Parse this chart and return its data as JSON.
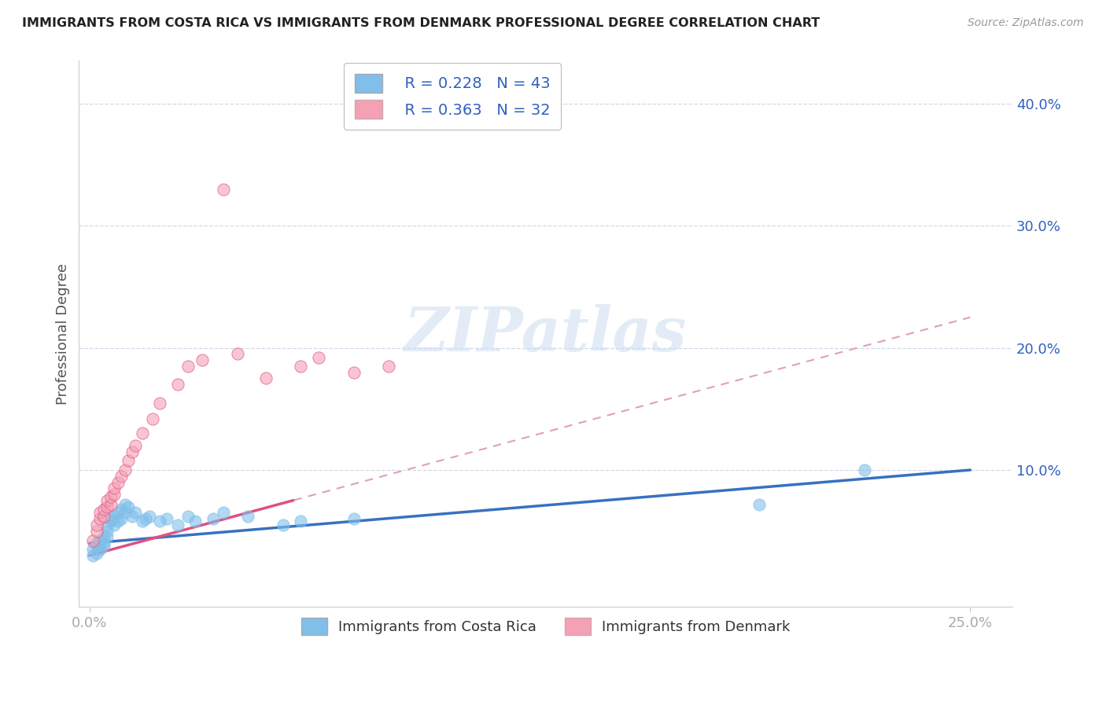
{
  "title": "IMMIGRANTS FROM COSTA RICA VS IMMIGRANTS FROM DENMARK PROFESSIONAL DEGREE CORRELATION CHART",
  "source": "Source: ZipAtlas.com",
  "ylabel": "Professional Degree",
  "xlim": [
    -0.003,
    0.262
  ],
  "ylim": [
    -0.012,
    0.435
  ],
  "legend_r1": "R = 0.228",
  "legend_n1": "N = 43",
  "legend_r2": "R = 0.363",
  "legend_n2": "N = 32",
  "legend_label1": "Immigrants from Costa Rica",
  "legend_label2": "Immigrants from Denmark",
  "color_blue": "#7fbfea",
  "color_pink": "#f4a0b5",
  "color_blue_line": "#3672c0",
  "color_pink_line": "#e05080",
  "color_pink_dash": "#e0a0b8",
  "color_text_blue": "#3060c0",
  "watermark_text": "ZIPatlas",
  "cr_intercept": 0.04,
  "cr_slope": 0.24,
  "dk_intercept": 0.03,
  "dk_slope": 0.78,
  "costa_rica_x": [
    0.001,
    0.001,
    0.002,
    0.002,
    0.002,
    0.003,
    0.003,
    0.003,
    0.004,
    0.004,
    0.004,
    0.005,
    0.005,
    0.005,
    0.006,
    0.006,
    0.007,
    0.007,
    0.008,
    0.008,
    0.009,
    0.009,
    0.01,
    0.01,
    0.011,
    0.012,
    0.013,
    0.015,
    0.016,
    0.017,
    0.02,
    0.022,
    0.025,
    0.028,
    0.03,
    0.035,
    0.038,
    0.045,
    0.055,
    0.06,
    0.075,
    0.19,
    0.22
  ],
  "costa_rica_y": [
    0.035,
    0.03,
    0.038,
    0.032,
    0.04,
    0.042,
    0.038,
    0.035,
    0.04,
    0.045,
    0.038,
    0.05,
    0.055,
    0.045,
    0.058,
    0.06,
    0.062,
    0.055,
    0.065,
    0.058,
    0.068,
    0.06,
    0.072,
    0.065,
    0.07,
    0.062,
    0.065,
    0.058,
    0.06,
    0.062,
    0.058,
    0.06,
    0.055,
    0.062,
    0.058,
    0.06,
    0.065,
    0.062,
    0.055,
    0.058,
    0.06,
    0.072,
    0.1
  ],
  "denmark_x": [
    0.001,
    0.002,
    0.002,
    0.003,
    0.003,
    0.004,
    0.004,
    0.005,
    0.005,
    0.006,
    0.006,
    0.007,
    0.007,
    0.008,
    0.009,
    0.01,
    0.011,
    0.012,
    0.013,
    0.015,
    0.018,
    0.02,
    0.025,
    0.028,
    0.032,
    0.038,
    0.042,
    0.05,
    0.06,
    0.065,
    0.075,
    0.085
  ],
  "denmark_y": [
    0.042,
    0.05,
    0.055,
    0.06,
    0.065,
    0.062,
    0.068,
    0.07,
    0.075,
    0.072,
    0.078,
    0.08,
    0.085,
    0.09,
    0.095,
    0.1,
    0.108,
    0.115,
    0.12,
    0.13,
    0.142,
    0.155,
    0.17,
    0.185,
    0.19,
    0.33,
    0.195,
    0.175,
    0.185,
    0.192,
    0.18,
    0.185
  ]
}
